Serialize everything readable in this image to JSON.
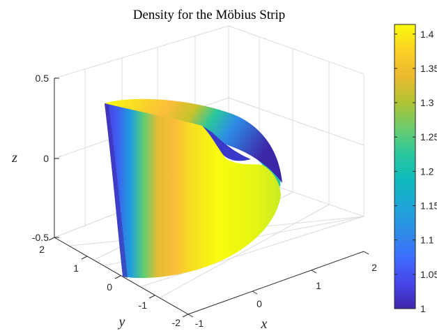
{
  "chart_data": {
    "type": "surface",
    "title": "Density for the Möbius Strip",
    "xlabel": "x",
    "ylabel": "y",
    "zlabel": "z",
    "x_ticks": [
      "-1",
      "0",
      "1",
      "2"
    ],
    "y_ticks": [
      "-2",
      "-1",
      "0",
      "1",
      "2"
    ],
    "z_ticks": [
      "-0.5",
      "0",
      "0.5"
    ],
    "xlim": [
      -1,
      2
    ],
    "ylim": [
      -2,
      2
    ],
    "zlim": [
      -0.5,
      0.5
    ],
    "grid": true,
    "colormap": "parula",
    "colorbar": {
      "ticks": [
        "1",
        "1.05",
        "1.1",
        "1.15",
        "1.2",
        "1.25",
        "1.3",
        "1.35",
        "1.4"
      ],
      "tick_values": [
        1,
        1.05,
        1.1,
        1.15,
        1.2,
        1.25,
        1.3,
        1.35,
        1.4
      ],
      "lim": [
        1,
        1.414
      ],
      "colors": [
        "#3e26a8",
        "#4746eb",
        "#3e6dfd",
        "#2d8de6",
        "#1ea6d7",
        "#0fbbbb",
        "#2ac79c",
        "#6ccc6c",
        "#b1c434",
        "#ecb92f",
        "#fbd124",
        "#f9fb0e"
      ]
    }
  }
}
